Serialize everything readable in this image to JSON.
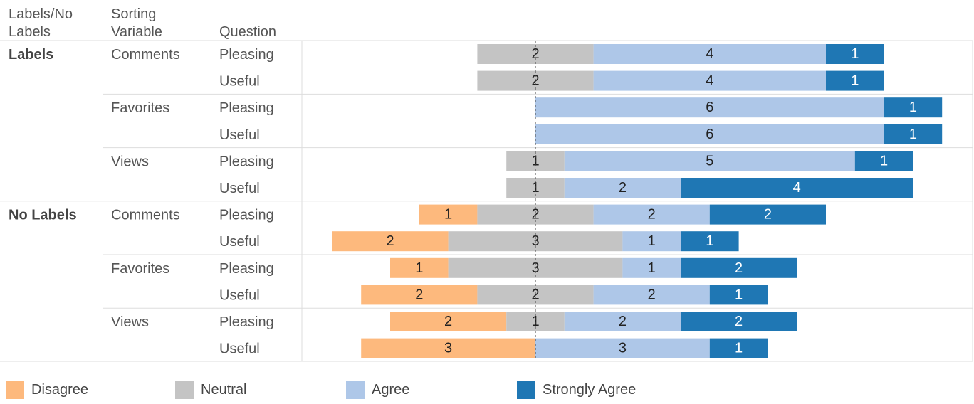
{
  "headers": {
    "labels_no_labels": [
      "Labels/No",
      "Labels"
    ],
    "sorting_variable": [
      "Sorting",
      "Variable"
    ],
    "question": "Question"
  },
  "chart_data": {
    "type": "bar",
    "stacked": "diverging",
    "colors": {
      "Disagree": "#FDB97D",
      "Neutral": "#C4C4C4",
      "Agree": "#AEC7E8",
      "Strongly Agree": "#1F77B4"
    },
    "legend": [
      "Disagree",
      "Neutral",
      "Agree",
      "Strongly Agree"
    ],
    "legend_position": "bottom",
    "groups": [
      {
        "name": "Labels",
        "variables": [
          {
            "name": "Comments",
            "questions": [
              {
                "q": "Pleasing",
                "Disagree": 0,
                "Neutral": 2,
                "Agree": 4,
                "Strongly Agree": 1
              },
              {
                "q": "Useful",
                "Disagree": 0,
                "Neutral": 2,
                "Agree": 4,
                "Strongly Agree": 1
              }
            ]
          },
          {
            "name": "Favorites",
            "questions": [
              {
                "q": "Pleasing",
                "Disagree": 0,
                "Neutral": 0,
                "Agree": 6,
                "Strongly Agree": 1
              },
              {
                "q": "Useful",
                "Disagree": 0,
                "Neutral": 0,
                "Agree": 6,
                "Strongly Agree": 1
              }
            ]
          },
          {
            "name": "Views",
            "questions": [
              {
                "q": "Pleasing",
                "Disagree": 0,
                "Neutral": 1,
                "Agree": 5,
                "Strongly Agree": 1
              },
              {
                "q": "Useful",
                "Disagree": 0,
                "Neutral": 1,
                "Agree": 2,
                "Strongly Agree": 4
              }
            ]
          }
        ]
      },
      {
        "name": "No Labels",
        "variables": [
          {
            "name": "Comments",
            "questions": [
              {
                "q": "Pleasing",
                "Disagree": 1,
                "Neutral": 2,
                "Agree": 2,
                "Strongly Agree": 2
              },
              {
                "q": "Useful",
                "Disagree": 2,
                "Neutral": 3,
                "Agree": 1,
                "Strongly Agree": 1
              }
            ]
          },
          {
            "name": "Favorites",
            "questions": [
              {
                "q": "Pleasing",
                "Disagree": 1,
                "Neutral": 3,
                "Agree": 1,
                "Strongly Agree": 2
              },
              {
                "q": "Useful",
                "Disagree": 2,
                "Neutral": 2,
                "Agree": 2,
                "Strongly Agree": 1
              }
            ]
          },
          {
            "name": "Views",
            "questions": [
              {
                "q": "Pleasing",
                "Disagree": 2,
                "Neutral": 1,
                "Agree": 2,
                "Strongly Agree": 2
              },
              {
                "q": "Useful",
                "Disagree": 3,
                "Neutral": 0,
                "Agree": 3,
                "Strongly Agree": 1
              }
            ]
          }
        ]
      }
    ]
  }
}
